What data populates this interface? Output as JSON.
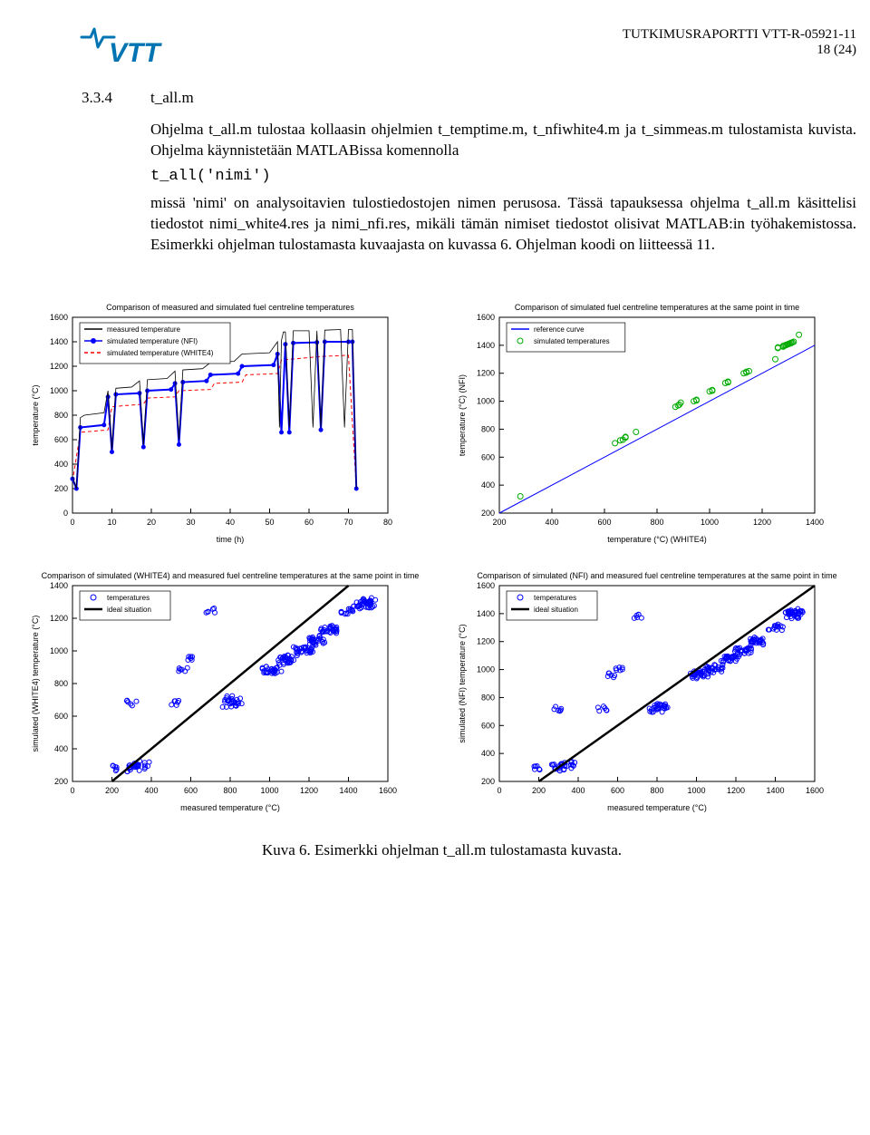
{
  "header": {
    "report_label": "TUTKIMUSRAPORTTI VTT-R-05921-11",
    "page": "18 (24)",
    "logo_text": "VTT",
    "logo_color": "#0074b3"
  },
  "section_number": "3.3.4",
  "section_title": "t_all.m",
  "para1": "Ohjelma t_all.m tulostaa kollaasin ohjelmien t_temptime.m, t_nfiwhite4.m ja t_simmeas.m tulostamista kuvista. Ohjelma käynnistetään MATLABissa komennolla",
  "code": "t_all('nimi')",
  "para2": "missä 'nimi' on analysoitavien tulostiedostojen nimen perusosa. Tässä tapauksessa ohjelma t_all.m käsittelisi tiedostot nimi_white4.res ja nimi_nfi.res, mikäli tämän nimiset tiedostot olisivat MATLAB:in työhakemistossa. Esimerkki ohjelman tulostamasta kuvaajasta on kuvassa 6. Ohjelman koodi on liitteessä 11.",
  "caption": "Kuva 6. Esimerkki ohjelman t_all.m tulostamasta kuvasta.",
  "colors": {
    "measured": "#000000",
    "nfi": "#0000ff",
    "white4": "#ff0000",
    "white4_dash": "4,3",
    "ref": "#0000ff",
    "scatter_edge": "#00aa00",
    "scatter_blue": "#0000ff",
    "ideal": "#000000",
    "axis": "#000000",
    "grid": "none",
    "legend_border": "#000000",
    "legend_bg": "#ffffff"
  },
  "chart1": {
    "title": "Comparison of measured and simulated fuel centreline temperatures",
    "xlabel": "time (h)",
    "ylabel": "temperature (°C)",
    "xlim": [
      0,
      80
    ],
    "ylim": [
      0,
      1600
    ],
    "xtick": 10,
    "ytick": 200,
    "title_fs": 9,
    "label_fs": 9,
    "tick_fs": 9,
    "legend_fs": 8,
    "legend": [
      "measured temperature",
      "simulated temperature (NFI)",
      "simulated temperature (WHITE4)"
    ],
    "series": {
      "measured": [
        [
          0,
          300
        ],
        [
          1,
          200
        ],
        [
          2,
          780
        ],
        [
          3,
          800
        ],
        [
          8,
          820
        ],
        [
          9,
          1000
        ],
        [
          10,
          520
        ],
        [
          11,
          1020
        ],
        [
          15,
          1030
        ],
        [
          17,
          1080
        ],
        [
          18,
          560
        ],
        [
          19,
          1090
        ],
        [
          24,
          1100
        ],
        [
          26,
          1160
        ],
        [
          27,
          600
        ],
        [
          28,
          1170
        ],
        [
          33,
          1180
        ],
        [
          35,
          1230
        ],
        [
          41,
          1240
        ],
        [
          43,
          1300
        ],
        [
          50,
          1310
        ],
        [
          52,
          1400
        ],
        [
          52.5,
          700
        ],
        [
          53,
          1410
        ],
        [
          53.5,
          1480
        ],
        [
          54,
          1480
        ],
        [
          55,
          700
        ],
        [
          56,
          1490
        ],
        [
          60,
          1490
        ],
        [
          61,
          700
        ],
        [
          62,
          1490
        ],
        [
          63,
          700
        ],
        [
          64,
          1495
        ],
        [
          68,
          1500
        ],
        [
          69,
          700
        ],
        [
          70,
          1500
        ],
        [
          71,
          1500
        ],
        [
          72,
          200
        ]
      ],
      "nfi": [
        [
          0,
          280
        ],
        [
          1,
          200
        ],
        [
          2,
          700
        ],
        [
          8,
          720
        ],
        [
          9,
          950
        ],
        [
          10,
          500
        ],
        [
          11,
          970
        ],
        [
          17,
          980
        ],
        [
          18,
          540
        ],
        [
          19,
          1000
        ],
        [
          25,
          1010
        ],
        [
          26,
          1060
        ],
        [
          27,
          560
        ],
        [
          28,
          1070
        ],
        [
          34,
          1080
        ],
        [
          35,
          1130
        ],
        [
          42,
          1140
        ],
        [
          43,
          1200
        ],
        [
          51,
          1210
        ],
        [
          52,
          1300
        ],
        [
          53,
          660
        ],
        [
          54,
          1380
        ],
        [
          55,
          660
        ],
        [
          56,
          1390
        ],
        [
          62,
          1395
        ],
        [
          63,
          680
        ],
        [
          64,
          1400
        ],
        [
          70,
          1400
        ],
        [
          71,
          1400
        ],
        [
          72,
          200
        ]
      ],
      "white4": [
        [
          0,
          260
        ],
        [
          2,
          660
        ],
        [
          9,
          680
        ],
        [
          10,
          870
        ],
        [
          18,
          890
        ],
        [
          19,
          940
        ],
        [
          26,
          950
        ],
        [
          27,
          1000
        ],
        [
          35,
          1010
        ],
        [
          36,
          1060
        ],
        [
          43,
          1070
        ],
        [
          44,
          1130
        ],
        [
          52,
          1140
        ],
        [
          53,
          1250
        ],
        [
          63,
          1280
        ],
        [
          70,
          1290
        ],
        [
          72,
          200
        ]
      ]
    }
  },
  "chart2": {
    "title": "Comparison of simulated fuel centreline temperatures at the same point in time",
    "xlabel": "temperature (°C) (WHITE4)",
    "ylabel": "temperature (°C) (NFI)",
    "xlim": [
      200,
      1400
    ],
    "ylim": [
      200,
      1600
    ],
    "xtick": 200,
    "ytick": 200,
    "title_fs": 9,
    "label_fs": 9,
    "tick_fs": 9,
    "legend_fs": 8,
    "legend": [
      "reference curve",
      "simulated temperatures"
    ],
    "ref_line": [
      [
        200,
        200
      ],
      [
        1400,
        1400
      ]
    ],
    "points": [
      [
        280,
        320
      ],
      [
        640,
        700
      ],
      [
        660,
        720
      ],
      [
        670,
        725
      ],
      [
        680,
        740
      ],
      [
        680,
        745
      ],
      [
        720,
        780
      ],
      [
        870,
        960
      ],
      [
        880,
        970
      ],
      [
        885,
        975
      ],
      [
        890,
        990
      ],
      [
        940,
        1000
      ],
      [
        950,
        1005
      ],
      [
        950,
        1010
      ],
      [
        1000,
        1070
      ],
      [
        1010,
        1075
      ],
      [
        1010,
        1080
      ],
      [
        1060,
        1130
      ],
      [
        1070,
        1135
      ],
      [
        1070,
        1140
      ],
      [
        1130,
        1200
      ],
      [
        1140,
        1205
      ],
      [
        1140,
        1210
      ],
      [
        1150,
        1215
      ],
      [
        1250,
        1300
      ],
      [
        1260,
        1380
      ],
      [
        1260,
        1385
      ],
      [
        1280,
        1390
      ],
      [
        1280,
        1395
      ],
      [
        1285,
        1398
      ],
      [
        1290,
        1400
      ],
      [
        1290,
        1402
      ],
      [
        1295,
        1405
      ],
      [
        1300,
        1408
      ],
      [
        1300,
        1410
      ],
      [
        1305,
        1412
      ],
      [
        1310,
        1415
      ],
      [
        1310,
        1418
      ],
      [
        1315,
        1420
      ],
      [
        1320,
        1425
      ],
      [
        1340,
        1475
      ]
    ]
  },
  "chart3": {
    "title": "Comparison of simulated (WHITE4) and measured fuel centreline temperatures at the same point in time",
    "xlabel": "measured temperature (°C)",
    "ylabel": "simulated (WHITE4) temperature (°C)",
    "xlim": [
      0,
      1600
    ],
    "ylim": [
      200,
      1400
    ],
    "xtick": 200,
    "ytick": 200,
    "title_fs": 9,
    "label_fs": 9,
    "tick_fs": 9,
    "legend_fs": 8,
    "legend": [
      "temperatures",
      "ideal situation"
    ],
    "ref_line": [
      [
        200,
        200
      ],
      [
        1400,
        1400
      ]
    ]
  },
  "chart4": {
    "title": "Comparison of simulated (NFI) and measured fuel centreline temperatures at the same point in time",
    "xlabel": "measured temperature (°C)",
    "ylabel": "simulated (NFI) temperature (°C)",
    "xlim": [
      0,
      1600
    ],
    "ylim": [
      200,
      1600
    ],
    "xtick": 200,
    "ytick": 200,
    "title_fs": 9,
    "label_fs": 9,
    "tick_fs": 9,
    "legend_fs": 8,
    "legend": [
      "temperatures",
      "ideal situation"
    ],
    "ref_line": [
      [
        200,
        200
      ],
      [
        1600,
        1600
      ]
    ]
  }
}
